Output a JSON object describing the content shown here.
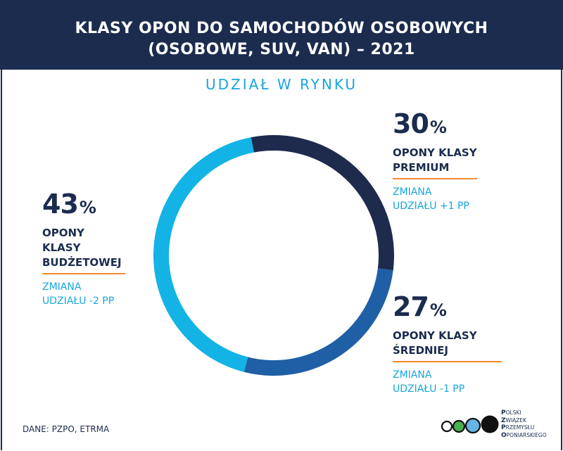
{
  "header": {
    "line1": "KLASY OPON DO SAMOCHODÓW OSOBOWYCH",
    "line2": "(OSOBOWE, SUV, VAN) –  2021"
  },
  "chart_data": {
    "type": "pie",
    "title": "KLASY OPON DO SAMOCHODÓW OSOBOWYCH (OSOBOWE, SUV, VAN) – 2021",
    "subtitle": "UDZIAŁ W RYNKU",
    "slices": [
      {
        "label_line1": "OPONY KLASY",
        "label_line2": "PREMIUM",
        "value": 30,
        "color": "#1e2b4d",
        "change_line1": "ZMIANA",
        "change_line2": "UDZIAŁU +1 PP"
      },
      {
        "label_line1": "OPONY KLASY",
        "label_line2": "ŚREDNIEJ",
        "value": 27,
        "color": "#1f5fa6",
        "change_line1": "ZMIANA",
        "change_line2": "UDZIAŁU -1 PP"
      },
      {
        "label_line1": "OPONY KLASY",
        "label_line2": "BUDŻETOWEJ",
        "value": 43,
        "color": "#13b3e6",
        "change_line1": "ZMIANA",
        "change_line2": "UDZIAŁU -2 PP"
      }
    ],
    "unit": "%"
  },
  "footer": {
    "source": "DANE: PZPO, ETRMA",
    "logo_lines": [
      {
        "initial": "P",
        "rest": "OLSKI"
      },
      {
        "initial": "Z",
        "rest": "WIĄZEK"
      },
      {
        "initial": "P",
        "rest": "RZEMYSŁU"
      },
      {
        "initial": "O",
        "rest": "PONIARSKIEGO"
      }
    ]
  },
  "colors": {
    "navy": "#1b2c4f",
    "accent_blue": "#18a6dd",
    "orange_rule": "#f28a2e"
  }
}
